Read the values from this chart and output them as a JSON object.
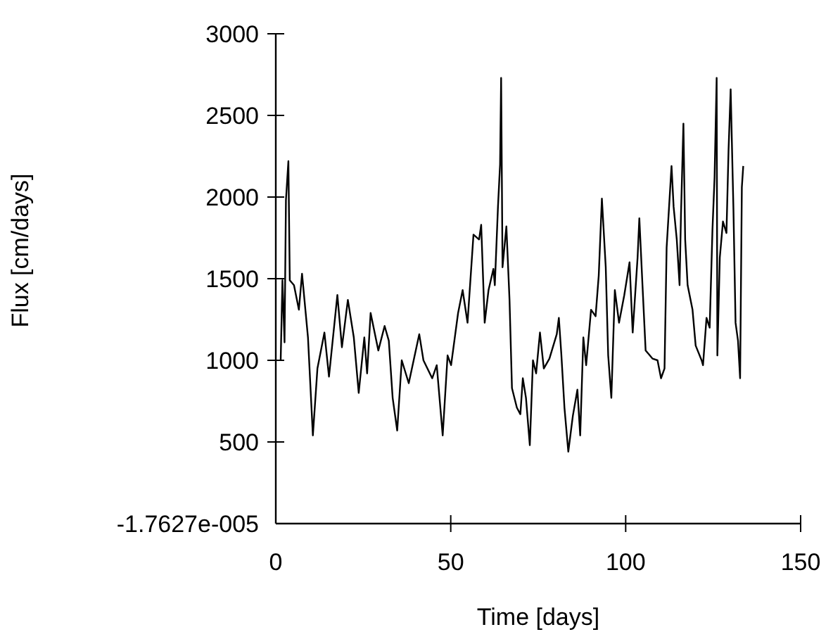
{
  "chart_data": {
    "type": "line",
    "xlabel": "Time [days]",
    "ylabel": "Flux [cm/days]",
    "xlim": [
      0,
      150
    ],
    "xticks": [
      0,
      50,
      100,
      150
    ],
    "ylim": [
      -1.7627e-05,
      3000
    ],
    "yticks": [
      {
        "value": -1.7627e-05,
        "label": "-1.7627e-005"
      },
      500,
      1000,
      1500,
      2000,
      2500,
      3000
    ],
    "grid": false,
    "marker": "none",
    "line_style": "solid",
    "series": [
      {
        "color": "#000000",
        "x": [
          1.4,
          1.9,
          2.5,
          2.9,
          3.6,
          4,
          5.2,
          6.6,
          7.5,
          9.2,
          10.6,
          11.9,
          13.9,
          15.2,
          17.6,
          18.9,
          20.6,
          22.3,
          23.7,
          25.3,
          26.1,
          27.1,
          29.3,
          31.1,
          32.3,
          33.4,
          34.7,
          36,
          38,
          41,
          42.2,
          44.7,
          46,
          47.7,
          49.1,
          50.1,
          52.1,
          53.4,
          54.8,
          56.5,
          58.1,
          58.7,
          59.7,
          60.8,
          62.2,
          62.6,
          63.5,
          64.1,
          64.4,
          64.8,
          65.9,
          66.8,
          67.5,
          68.9,
          69.9,
          70.6,
          71.5,
          72.6,
          73.5,
          74.4,
          75.5,
          76.6,
          78.2,
          80.3,
          80.9,
          81.6,
          82.5,
          83.6,
          84.9,
          86.2,
          87,
          87.9,
          88.7,
          90.1,
          91.4,
          92.3,
          93.2,
          94.3,
          95,
          95.9,
          96.9,
          98.1,
          99.6,
          101.1,
          102,
          103.4,
          103.9,
          104.8,
          105.7,
          107.7,
          109.1,
          110.1,
          111.1,
          111.7,
          113.1,
          113.7,
          114.6,
          115.4,
          115.8,
          116.5,
          117,
          117.7,
          119.1,
          120,
          121.7,
          122.1,
          123.1,
          124,
          124.8,
          125.4,
          126,
          126.2,
          126.9,
          127.8,
          128.8,
          129.4,
          130,
          130.8,
          131.4,
          132.1,
          132.7,
          133.2,
          133.6
        ],
        "values": [
          1000,
          1490,
          1110,
          1980,
          2220,
          1490,
          1460,
          1310,
          1530,
          1140,
          540,
          950,
          1170,
          900,
          1400,
          1080,
          1370,
          1140,
          800,
          1140,
          920,
          1290,
          1060,
          1210,
          1120,
          770,
          570,
          1000,
          860,
          1160,
          1000,
          890,
          970,
          540,
          1030,
          970,
          1290,
          1430,
          1230,
          1770,
          1740,
          1830,
          1230,
          1430,
          1560,
          1460,
          1940,
          2200,
          2730,
          1570,
          1820,
          1370,
          830,
          710,
          670,
          890,
          770,
          480,
          1000,
          920,
          1170,
          950,
          1010,
          1160,
          1260,
          1040,
          710,
          440,
          660,
          820,
          540,
          1140,
          970,
          1310,
          1270,
          1520,
          1990,
          1570,
          1030,
          770,
          1430,
          1230,
          1400,
          1600,
          1170,
          1630,
          1870,
          1460,
          1060,
          1010,
          1000,
          890,
          950,
          1690,
          2190,
          1940,
          1740,
          1460,
          1890,
          2450,
          1740,
          1460,
          1310,
          1090,
          1000,
          970,
          1260,
          1200,
          1800,
          2120,
          2730,
          1030,
          1630,
          1850,
          1780,
          2290,
          2660,
          1920,
          1230,
          1120,
          890,
          2060,
          2190
        ]
      }
    ]
  }
}
